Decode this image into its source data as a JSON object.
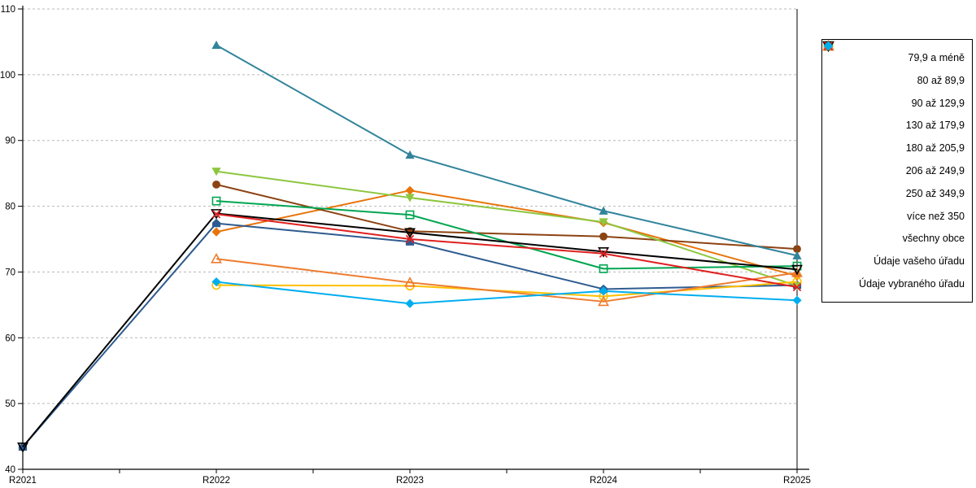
{
  "chart_data": {
    "type": "line",
    "title": "",
    "xlabel": "",
    "ylabel": "",
    "x": [
      "R2021",
      "R2022",
      "R2023",
      "R2024",
      "R2025"
    ],
    "ylim": [
      40,
      110
    ],
    "y_ticks": [
      40,
      50,
      60,
      70,
      80,
      90,
      100,
      110
    ],
    "grid": "horizontal dashed gray",
    "legend_position": "right outside box",
    "grid_color": "#b8b8b8",
    "axis_color": "#000000",
    "series": [
      {
        "name": "79,9 a méně",
        "color": "#E8740C",
        "marker": "diamond",
        "fill": "filled",
        "values": [
          null,
          76.1,
          82.4,
          77.5,
          69.4
        ]
      },
      {
        "name": "80 až 89,9",
        "color": "#8C4312",
        "marker": "circle",
        "fill": "filled",
        "values": [
          null,
          83.3,
          76.2,
          75.4,
          73.5
        ]
      },
      {
        "name": "90 až 129,9",
        "color": "#31849B",
        "marker": "triangle-up",
        "fill": "filled",
        "values": [
          null,
          104.5,
          87.8,
          79.3,
          72.5
        ]
      },
      {
        "name": "130 až 179,9",
        "color": "#2E5B8F",
        "marker": "pentagon",
        "fill": "filled",
        "values": [
          43.4,
          77.4,
          74.6,
          67.4,
          68.0
        ]
      },
      {
        "name": "180 až 205,9",
        "color": "#8DC63F",
        "marker": "triangle-down",
        "fill": "filled",
        "values": [
          null,
          85.3,
          81.3,
          77.6,
          67.9
        ]
      },
      {
        "name": "206 až 249,9",
        "color": "#00A651",
        "marker": "square",
        "fill": "hollow",
        "values": [
          null,
          80.8,
          78.7,
          70.5,
          70.9
        ]
      },
      {
        "name": "250 až 349,9",
        "color": "#FFC000",
        "marker": "circle",
        "fill": "hollow",
        "values": [
          null,
          68.0,
          67.9,
          66.3,
          68.5
        ]
      },
      {
        "name": "více než 350",
        "color": "#ED7D31",
        "marker": "triangle-up",
        "fill": "hollow",
        "values": [
          null,
          72.0,
          68.4,
          65.5,
          69.9
        ]
      },
      {
        "name": "všechny obce",
        "color": "#000000",
        "marker": "triangle-down",
        "fill": "hollow",
        "values": [
          43.4,
          78.9,
          76.0,
          73.1,
          70.4
        ]
      },
      {
        "name": "Údaje vašeho úřadu",
        "color": "#E02020",
        "marker": "x",
        "fill": "line",
        "values": [
          null,
          78.8,
          75.0,
          72.8,
          67.7
        ]
      },
      {
        "name": "Údaje vybraného úřadu",
        "color": "#00AEEF",
        "marker": "diamond",
        "fill": "filled",
        "values": [
          null,
          68.5,
          65.2,
          67.1,
          65.7
        ]
      }
    ]
  }
}
